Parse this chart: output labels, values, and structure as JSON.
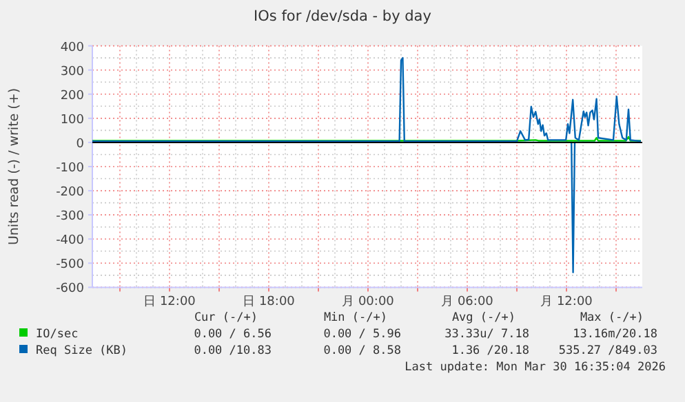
{
  "chart_data": {
    "type": "line",
    "title": "IOs for /dev/sda - by day",
    "ylabel": "Units read (-) / write (+)",
    "xlim": [
      "2026-03-29T07:20",
      "2026-03-30T16:35"
    ],
    "ylim": [
      -600,
      400
    ],
    "xticks": [
      {
        "value": "2026-03-29T09:00",
        "label": null
      },
      {
        "value": "2026-03-29T12:00",
        "label": "日 12:00"
      },
      {
        "value": "2026-03-29T15:00",
        "label": null
      },
      {
        "value": "2026-03-29T18:00",
        "label": "日 18:00"
      },
      {
        "value": "2026-03-29T21:00",
        "label": null
      },
      {
        "value": "2026-03-30T00:00",
        "label": "月 00:00"
      },
      {
        "value": "2026-03-30T03:00",
        "label": null
      },
      {
        "value": "2026-03-30T06:00",
        "label": "月 06:00"
      },
      {
        "value": "2026-03-30T09:00",
        "label": null
      },
      {
        "value": "2026-03-30T12:00",
        "label": "月 12:00"
      },
      {
        "value": "2026-03-30T15:00",
        "label": null
      }
    ],
    "yticks": [
      -600,
      -500,
      -400,
      -300,
      -200,
      -100,
      0,
      100,
      200,
      300,
      400
    ],
    "grid": true,
    "legend": "bottom",
    "marker": "none",
    "line_style": "solid",
    "ref_lines": [
      {
        "axis": "y",
        "value": 0,
        "color": "#000000"
      }
    ],
    "series": [
      {
        "name": "IO/sec",
        "color": "#00cc00",
        "x": [
          "2026-03-29T07:20",
          "2026-03-30T09:00",
          "2026-03-30T10:08",
          "2026-03-30T10:18",
          "2026-03-30T13:42",
          "2026-03-30T13:49",
          "2026-03-30T13:55",
          "2026-03-30T15:36",
          "2026-03-30T15:45",
          "2026-03-30T15:52",
          "2026-03-30T16:30"
        ],
        "values": [
          7,
          7,
          10,
          7,
          7,
          19,
          7,
          7,
          23,
          7,
          7
        ]
      },
      {
        "name": "Req Size (KB)",
        "color": "#0066b3",
        "x": [
          "2026-03-29T07:20",
          "2026-03-30T01:54",
          "2026-03-30T02:00",
          "2026-03-30T02:06",
          "2026-03-30T02:12",
          "2026-03-30T09:00",
          "2026-03-30T09:13",
          "2026-03-30T09:30",
          "2026-03-30T09:43",
          "2026-03-30T09:52",
          "2026-03-30T10:00",
          "2026-03-30T10:08",
          "2026-03-30T10:17",
          "2026-03-30T10:22",
          "2026-03-30T10:28",
          "2026-03-30T10:34",
          "2026-03-30T10:40",
          "2026-03-30T10:47",
          "2026-03-30T10:53",
          "2026-03-30T11:58",
          "2026-03-30T12:05",
          "2026-03-30T12:11",
          "2026-03-30T12:23",
          "2026-03-30T12:32",
          "2026-03-30T12:45",
          "2026-03-30T12:53",
          "2026-03-30T13:02",
          "2026-03-30T13:07",
          "2026-03-30T13:13",
          "2026-03-30T13:19",
          "2026-03-30T13:26",
          "2026-03-30T13:34",
          "2026-03-30T13:40",
          "2026-03-30T13:49",
          "2026-03-30T13:55",
          "2026-03-30T14:50",
          "2026-03-30T15:02",
          "2026-03-30T15:11",
          "2026-03-30T15:23",
          "2026-03-30T15:37",
          "2026-03-30T15:45",
          "2026-03-30T15:52",
          "2026-03-30T16:30"
        ],
        "values": [
          5,
          5,
          340,
          350,
          5,
          5,
          47,
          10,
          12,
          148,
          105,
          127,
          76,
          95,
          47,
          72,
          28,
          38,
          10,
          10,
          76,
          38,
          177,
          19,
          10,
          67,
          129,
          105,
          124,
          70,
          124,
          133,
          95,
          180,
          19,
          10,
          190,
          76,
          19,
          10,
          137,
          10,
          5
        ]
      },
      {
        "color": "#0066b3",
        "x": [
          "2026-03-29T07:20",
          "2026-03-30T12:18",
          "2026-03-30T12:24",
          "2026-03-30T12:30",
          "2026-03-30T16:30"
        ],
        "values": [
          0,
          0,
          -538,
          0,
          0
        ]
      }
    ],
    "annotations": [
      "Cur (-/+)",
      "Min (-/+)",
      "Avg (-/+)",
      "Max (-/+)",
      "0.00 / 6.56",
      "0.00 / 5.96",
      "33.33u/ 7.18",
      "13.16m/20.18",
      "0.00 /10.83",
      "0.00 / 8.58",
      "1.36 /20.18",
      "535.27 /849.03",
      "Last update: Mon Mar 30 16:35:04 2026"
    ]
  }
}
